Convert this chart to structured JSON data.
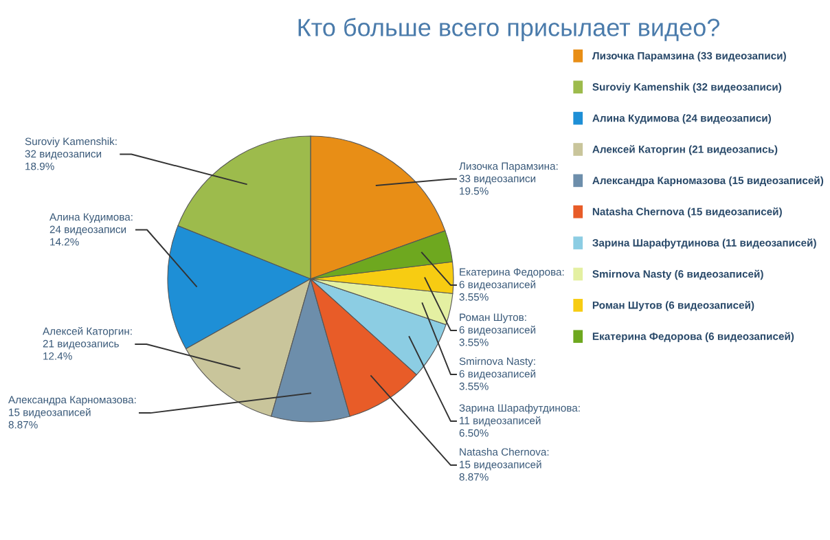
{
  "chart_data": {
    "type": "pie",
    "title": "Кто больше всего присылает видео?",
    "categories": [
      "Лизочка Парамзина (33 видеозаписи)",
      "Suroviy Kamenshik (32 видеозаписи)",
      "Алина Кудимова (24 видеозаписи)",
      "Алексей Каторгин (21 видеозапись)",
      "Александра Карномазова (15 видеозаписей)",
      "Natasha Chernova (15 видеозаписей)",
      "Зарина Шарафутдинова (11 видеозаписей)",
      "Smirnova Nasty (6 видеозаписей)",
      "Роман Шутов (6 видеозаписей)",
      "Екатерина Федорова (6 видеозаписей)"
    ],
    "values": [
      33,
      32,
      24,
      21,
      15,
      15,
      11,
      6,
      6,
      6
    ],
    "colors": [
      "#e88e16",
      "#9dbb4c",
      "#1e8fd6",
      "#c9c59b",
      "#6d8eab",
      "#e85c28",
      "#8ccde3",
      "#e4f0a2",
      "#f7cc12",
      "#6ea81f"
    ],
    "value_labels": [
      "Лизочка Парамзина:\n33 видеозаписи\n19.5%",
      "Suroviy Kamenshik:\n32 видеозаписи\n18.9%",
      "Алина Кудимова:\n24 видеозаписи\n14.2%",
      "Алексей Каторгин:\n21 видеозапись\n12.4%",
      "Александра Карномазова:\n15 видеозаписей\n8.87%",
      "Natasha Chernova:\n15 видеозаписей\n8.87%",
      "Зарина Шарафутдинова:\n11 видеозаписей\n6.50%",
      "Smirnova Nasty:\n6 видеозаписей\n3.55%",
      "Роман Шутов:\n6 видеозаписей\n3.55%",
      "Екатерина Федорова:\n6 видеозаписей\n3.55%"
    ],
    "legend": "right"
  }
}
